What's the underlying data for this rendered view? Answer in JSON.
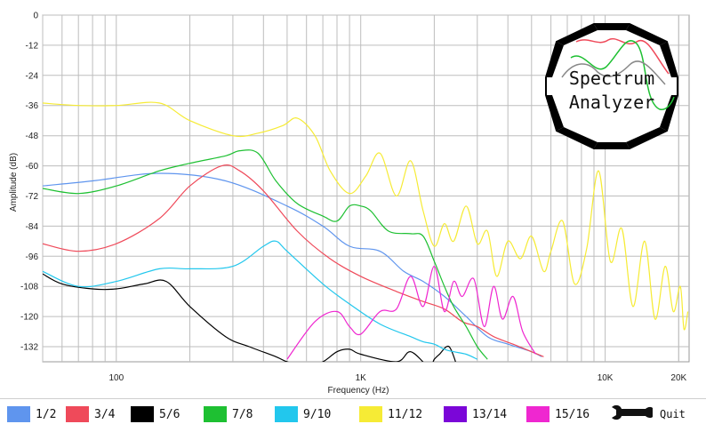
{
  "chart_data": {
    "type": "line",
    "title": "",
    "xlabel": "Frequency (Hz)",
    "ylabel": "Amplitude (dB)",
    "xscale": "log",
    "xlim": [
      50,
      22050
    ],
    "ylim": [
      -138,
      0
    ],
    "grid": true,
    "x_ticks": [
      {
        "value": 100,
        "label": "100"
      },
      {
        "value": 1000,
        "label": "1K"
      },
      {
        "value": 10000,
        "label": "10K"
      },
      {
        "value": 20000,
        "label": "20K"
      }
    ],
    "y_ticks": [
      0,
      -12,
      -24,
      -36,
      -48,
      -60,
      -72,
      -84,
      -96,
      -108,
      -120,
      -132
    ],
    "series": [
      {
        "name": "1/2",
        "color": "#5f95ee",
        "x": [
          50,
          80,
          150,
          280,
          500,
          700,
          900,
          1200,
          1500,
          1800,
          2200,
          2700,
          3300,
          4000,
          5000,
          5500
        ],
        "y": [
          -68,
          -66,
          -63,
          -66,
          -76,
          -84,
          -92,
          -94,
          -102,
          -106,
          -112,
          -120,
          -128,
          -131,
          -134,
          -136
        ]
      },
      {
        "name": "3/4",
        "color": "#ef4a5a",
        "x": [
          50,
          70,
          100,
          150,
          200,
          270,
          320,
          400,
          550,
          750,
          1000,
          1400,
          1800,
          2200,
          2600,
          3000,
          3500,
          4200,
          5000,
          5600
        ],
        "y": [
          -91,
          -94,
          -91,
          -81,
          -68,
          -60,
          -62,
          -70,
          -86,
          -97,
          -104,
          -110,
          -114,
          -117,
          -122,
          -124,
          -128,
          -131,
          -134,
          -136
        ]
      },
      {
        "name": "5/6",
        "color": "#000000",
        "x": [
          50,
          60,
          80,
          100,
          130,
          160,
          200,
          280,
          350,
          450,
          500,
          600,
          700,
          800,
          900,
          1000,
          1400,
          1600,
          1900,
          2000,
          2100,
          2300,
          2500
        ],
        "y": [
          -103,
          -107,
          -109,
          -109,
          -107,
          -106,
          -116,
          -128,
          -132,
          -136,
          -138,
          -140,
          -138,
          -134,
          -133,
          -135,
          -138,
          -134,
          -140,
          -137,
          -135,
          -132,
          -141
        ]
      },
      {
        "name": "7/8",
        "color": "#1ec032",
        "x": [
          50,
          70,
          100,
          150,
          200,
          280,
          320,
          380,
          450,
          550,
          700,
          800,
          900,
          1000,
          1100,
          1300,
          1600,
          1800,
          2000,
          2200,
          2400,
          2700,
          3000,
          3300
        ],
        "y": [
          -69,
          -71,
          -68,
          -62,
          -59,
          -56,
          -54,
          -55,
          -66,
          -75,
          -80,
          -82,
          -76,
          -76,
          -78,
          -86,
          -87,
          -88,
          -98,
          -108,
          -116,
          -124,
          -132,
          -137
        ]
      },
      {
        "name": "9/10",
        "color": "#22c7ed",
        "x": [
          50,
          70,
          100,
          150,
          200,
          300,
          400,
          450,
          500,
          700,
          900,
          1200,
          1600,
          1800,
          2000,
          2200,
          2400,
          2700,
          3000
        ],
        "y": [
          -102,
          -108,
          -106,
          -101,
          -101,
          -100,
          -92,
          -90,
          -94,
          -107,
          -115,
          -123,
          -128,
          -130,
          -131,
          -133,
          -134,
          -135,
          -137
        ]
      },
      {
        "name": "11/12",
        "color": "#f6eb35",
        "x": [
          50,
          70,
          100,
          150,
          200,
          300,
          380,
          480,
          550,
          650,
          750,
          900,
          1050,
          1200,
          1400,
          1600,
          1800,
          2000,
          2200,
          2400,
          2700,
          3000,
          3300,
          3600,
          4000,
          4500,
          5000,
          5600,
          6000,
          6700,
          7500,
          8400,
          9400,
          10500,
          11700,
          13000,
          14500,
          16000,
          17600,
          19000,
          20300,
          21000,
          21800
        ],
        "y": [
          -35,
          -36,
          -36,
          -35,
          -42,
          -48,
          -47,
          -44,
          -41,
          -48,
          -62,
          -71,
          -64,
          -55,
          -72,
          -58,
          -78,
          -92,
          -83,
          -90,
          -76,
          -91,
          -86,
          -104,
          -90,
          -97,
          -88,
          -102,
          -94,
          -82,
          -107,
          -93,
          -62,
          -98,
          -85,
          -116,
          -90,
          -121,
          -100,
          -118,
          -108,
          -125,
          -118
        ]
      },
      {
        "name": "15/16",
        "color": "#ef27d0",
        "x": [
          500,
          650,
          800,
          900,
          1000,
          1200,
          1400,
          1600,
          1800,
          2000,
          2200,
          2400,
          2600,
          2900,
          3200,
          3500,
          3800,
          4200,
          4600,
          5200
        ],
        "y": [
          -137,
          -122,
          -118,
          -124,
          -127,
          -118,
          -117,
          -104,
          -116,
          -100,
          -118,
          -106,
          -112,
          -105,
          -124,
          -108,
          -121,
          -112,
          -126,
          -135
        ]
      }
    ]
  },
  "legend": {
    "items": [
      {
        "label": "1/2",
        "color": "#5f95ee"
      },
      {
        "label": "3/4",
        "color": "#ef4a5a"
      },
      {
        "label": "5/6",
        "color": "#000000"
      },
      {
        "label": "7/8",
        "color": "#1ec032"
      },
      {
        "label": "9/10",
        "color": "#22c7ed"
      },
      {
        "label": "11/12",
        "color": "#f6eb35"
      },
      {
        "label": "13/14",
        "color": "#7b06d8"
      },
      {
        "label": "15/16",
        "color": "#ef27d0"
      }
    ],
    "quit_label": "Quit",
    "quit_icon": "wrench-icon"
  },
  "logo": {
    "line1": "Spectrum",
    "line2": "Analyzer",
    "colors": [
      "#ef4a5a",
      "#1ec032",
      "#888888"
    ]
  }
}
